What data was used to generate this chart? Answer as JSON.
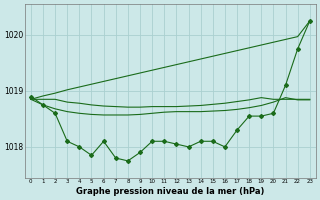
{
  "x": [
    0,
    1,
    2,
    3,
    4,
    5,
    6,
    7,
    8,
    9,
    10,
    11,
    12,
    13,
    14,
    15,
    16,
    17,
    18,
    19,
    20,
    21,
    22,
    23
  ],
  "y_main": [
    1018.9,
    1018.75,
    1018.6,
    1018.1,
    1018.0,
    1017.85,
    1018.1,
    1017.8,
    1017.75,
    1017.9,
    1018.1,
    1018.1,
    1018.05,
    1018.0,
    1018.1,
    1018.1,
    1018.0,
    1018.3,
    1018.55,
    1018.55,
    1018.6,
    1019.1,
    1019.75,
    1020.25
  ],
  "y_smooth": [
    1018.85,
    1018.75,
    1018.68,
    1018.63,
    1018.6,
    1018.58,
    1018.57,
    1018.57,
    1018.57,
    1018.58,
    1018.6,
    1018.62,
    1018.63,
    1018.63,
    1018.63,
    1018.64,
    1018.65,
    1018.67,
    1018.7,
    1018.74,
    1018.8,
    1018.88,
    1018.84,
    1018.84
  ],
  "y_trend": [
    1018.85,
    1018.85,
    1018.85,
    1018.8,
    1018.78,
    1018.75,
    1018.73,
    1018.72,
    1018.71,
    1018.71,
    1018.72,
    1018.72,
    1018.72,
    1018.73,
    1018.74,
    1018.76,
    1018.78,
    1018.81,
    1018.84,
    1018.88,
    1018.85,
    1018.85,
    1018.85,
    1018.85
  ],
  "y_linear": [
    1018.85,
    1018.91,
    1018.96,
    1019.02,
    1019.07,
    1019.12,
    1019.17,
    1019.22,
    1019.27,
    1019.32,
    1019.37,
    1019.42,
    1019.47,
    1019.52,
    1019.57,
    1019.62,
    1019.67,
    1019.72,
    1019.77,
    1019.82,
    1019.87,
    1019.92,
    1019.97,
    1020.25
  ],
  "bg_color": "#cce8e8",
  "grid_color": "#aad0d0",
  "line_color": "#1a6b1a",
  "ylim_min": 1017.45,
  "ylim_max": 1020.55,
  "yticks": [
    1018,
    1019,
    1020
  ],
  "xlabel": "Graphe pression niveau de la mer (hPa)",
  "marker": "D",
  "marker_size": 2.0,
  "line_width": 0.8
}
